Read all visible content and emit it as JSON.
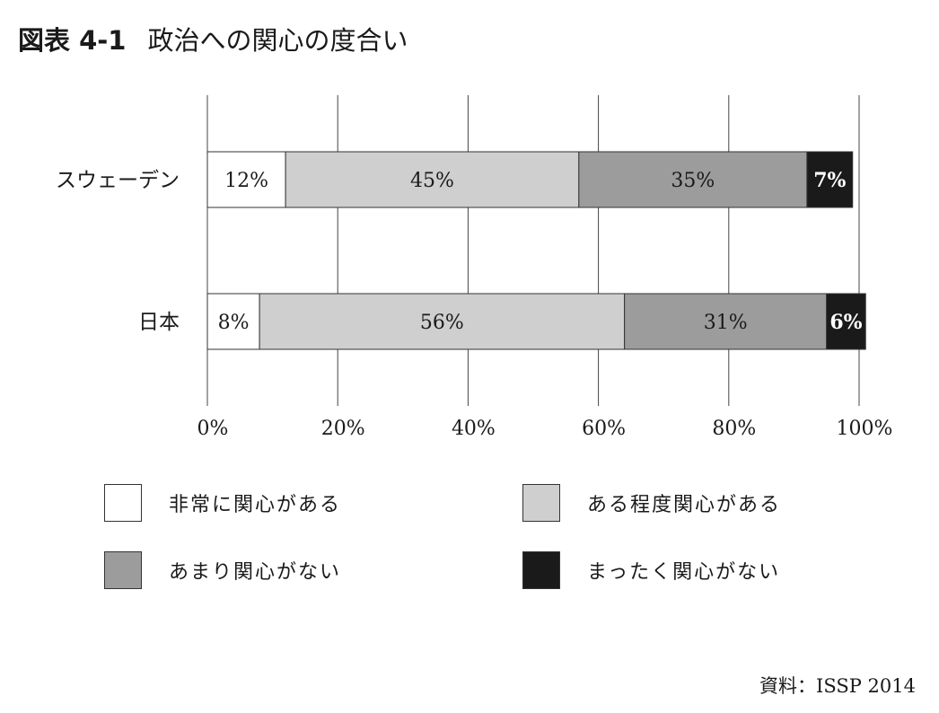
{
  "figure": {
    "number": "図表 4-1",
    "title": "政治への関心の度合い",
    "source": "資料：ISSP 2014"
  },
  "chart_data": {
    "type": "bar",
    "orientation": "horizontal",
    "stacked": true,
    "percent_stacked": true,
    "categories": [
      "スウェーデン",
      "日本"
    ],
    "series": [
      {
        "name": "非常に関心がある",
        "values": [
          12,
          8
        ],
        "labels": [
          "12%",
          "8%"
        ],
        "color": "#ffffff",
        "label_color": "#1a1a1a"
      },
      {
        "name": "ある程度関心がある",
        "values": [
          45,
          56
        ],
        "labels": [
          "45%",
          "56%"
        ],
        "color": "#cfcfcf",
        "label_color": "#1a1a1a"
      },
      {
        "name": "あまり関心がない",
        "values": [
          35,
          31
        ],
        "labels": [
          "35%",
          "31%"
        ],
        "color": "#9c9c9c",
        "label_color": "#1a1a1a"
      },
      {
        "name": "まったく関心がない",
        "values": [
          7,
          6
        ],
        "labels": [
          "7%",
          "6%"
        ],
        "color": "#1a1a1a",
        "label_color": "#ffffff"
      }
    ],
    "xlim": [
      0,
      100
    ],
    "x_ticks": [
      "0%",
      "20%",
      "40%",
      "60%",
      "80%",
      "100%"
    ],
    "grid": true,
    "legend_position": "bottom"
  }
}
